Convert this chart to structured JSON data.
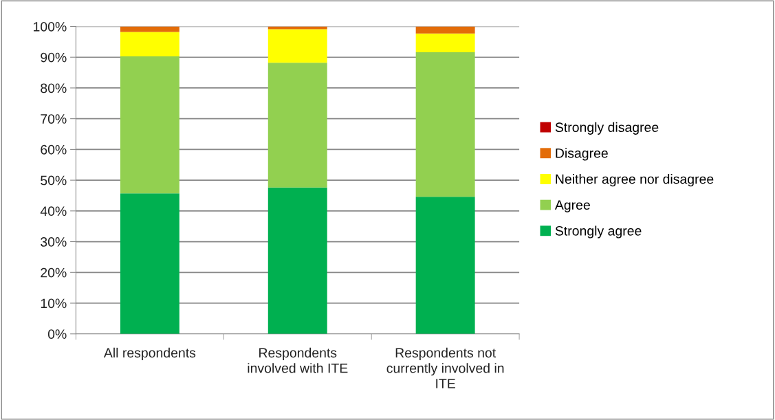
{
  "chart_data": {
    "type": "bar",
    "stacked": true,
    "categories": [
      "All respondents",
      "Respondents involved with ITE",
      "Respondents not currently involved in ITE"
    ],
    "series": [
      {
        "name": "Strongly agree",
        "color": "#00b050",
        "values": [
          45.7,
          47.6,
          44.6
        ]
      },
      {
        "name": "Agree",
        "color": "#92d050",
        "values": [
          44.6,
          40.6,
          47.0
        ]
      },
      {
        "name": "Neither agree nor disagree",
        "color": "#ffff00",
        "values": [
          7.9,
          10.9,
          6.1
        ]
      },
      {
        "name": "Disagree",
        "color": "#e36c09",
        "values": [
          1.8,
          0.9,
          2.3
        ]
      },
      {
        "name": "Strongly disagree",
        "color": "#c00000",
        "values": [
          0,
          0,
          0
        ]
      }
    ],
    "ylim": [
      0,
      100
    ],
    "yticks": [
      {
        "value": 0,
        "label": "0%"
      },
      {
        "value": 10,
        "label": "10%"
      },
      {
        "value": 20,
        "label": "20%"
      },
      {
        "value": 30,
        "label": "30%"
      },
      {
        "value": 40,
        "label": "40%"
      },
      {
        "value": 50,
        "label": "50%"
      },
      {
        "value": 60,
        "label": "60%"
      },
      {
        "value": 70,
        "label": "70%"
      },
      {
        "value": 80,
        "label": "80%"
      },
      {
        "value": 90,
        "label": "90%"
      },
      {
        "value": 100,
        "label": "100%"
      }
    ],
    "grid": "y",
    "legend": "right"
  }
}
